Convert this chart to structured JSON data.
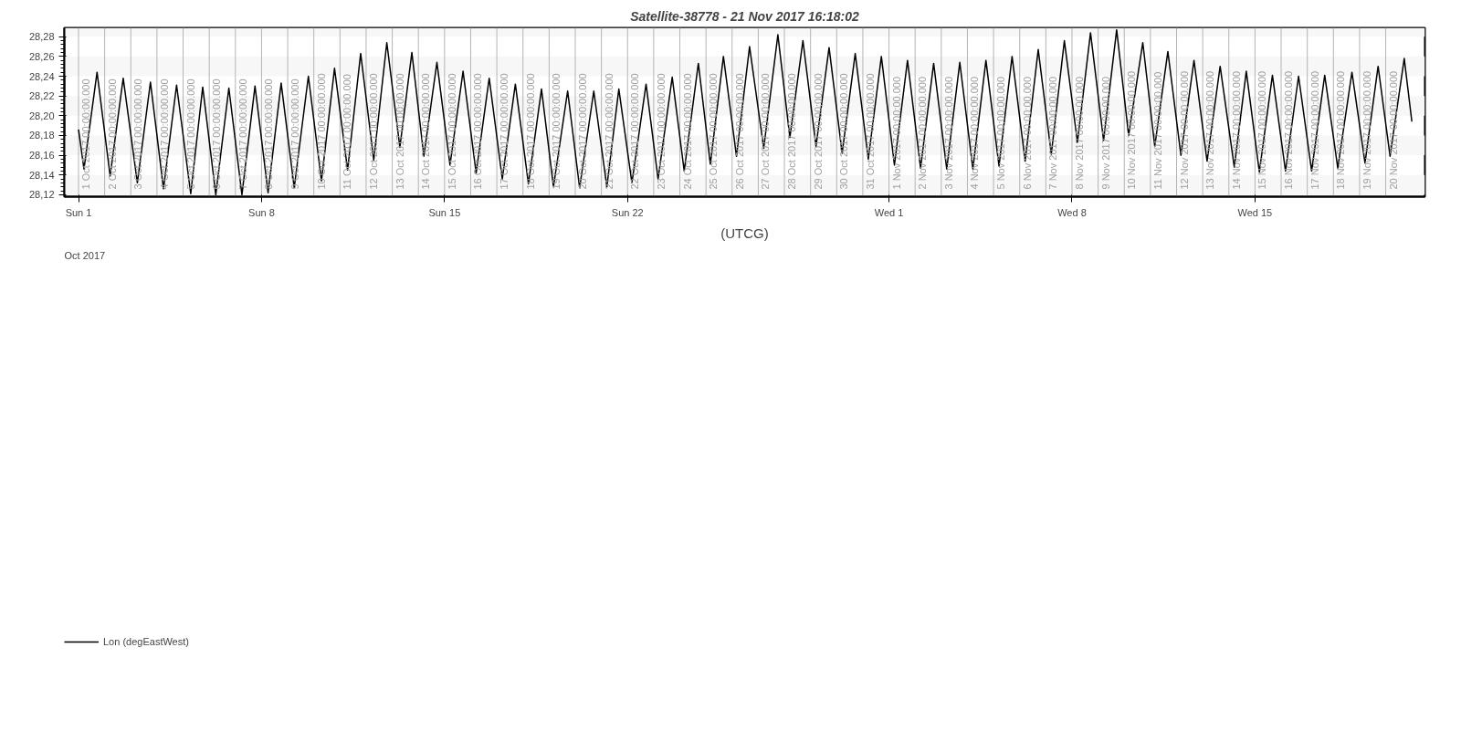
{
  "chart_data": {
    "type": "line",
    "title": "Satellite-38778 - 21 Nov 2017 16:18:02",
    "xlabel": "(UTCG)",
    "annotations": [
      "Oct 2017"
    ],
    "x": [
      "2017-10-01T00:00",
      "2017-10-01T05:00",
      "2017-10-01T17:00",
      "2017-10-02T05:00",
      "2017-10-02T17:00",
      "2017-10-03T06:00",
      "2017-10-03T18:00",
      "2017-10-04T06:00",
      "2017-10-04T18:00",
      "2017-10-05T07:00",
      "2017-10-05T18:00",
      "2017-10-06T06:00",
      "2017-10-06T18:00",
      "2017-10-07T06:00",
      "2017-10-07T18:00",
      "2017-10-08T06:00",
      "2017-10-08T18:00",
      "2017-10-09T06:00",
      "2017-10-09T19:00",
      "2017-10-10T07:00",
      "2017-10-10T19:00",
      "2017-10-11T07:00",
      "2017-10-11T19:00",
      "2017-10-12T07:00",
      "2017-10-12T19:00",
      "2017-10-13T07:00",
      "2017-10-13T18:00",
      "2017-10-14T05:00",
      "2017-10-14T17:00",
      "2017-10-15T05:00",
      "2017-10-15T17:00",
      "2017-10-16T05:00",
      "2017-10-16T17:00",
      "2017-10-17T05:00",
      "2017-10-17T17:00",
      "2017-10-18T05:00",
      "2017-10-18T17:00",
      "2017-10-19T04:00",
      "2017-10-19T17:00",
      "2017-10-20T04:00",
      "2017-10-20T17:00",
      "2017-10-21T05:00",
      "2017-10-21T16:00",
      "2017-10-22T04:00",
      "2017-10-22T17:00",
      "2017-10-23T04:00",
      "2017-10-23T17:00",
      "2017-10-24T04:00",
      "2017-10-24T17:00",
      "2017-10-25T04:00",
      "2017-10-25T16:00",
      "2017-10-26T04:00",
      "2017-10-26T16:00",
      "2017-10-27T05:00",
      "2017-10-27T18:00",
      "2017-10-28T05:00",
      "2017-10-28T17:00",
      "2017-10-29T05:00",
      "2017-10-29T17:00",
      "2017-10-30T05:00",
      "2017-10-30T17:00",
      "2017-10-31T05:00",
      "2017-10-31T17:00",
      "2017-11-01T05:00",
      "2017-11-01T17:00",
      "2017-11-02T05:00",
      "2017-11-02T17:00",
      "2017-11-03T05:00",
      "2017-11-03T17:00",
      "2017-11-04T05:00",
      "2017-11-04T17:00",
      "2017-11-05T05:00",
      "2017-11-05T17:00",
      "2017-11-06T05:00",
      "2017-11-06T17:00",
      "2017-11-07T05:00",
      "2017-11-07T17:00",
      "2017-11-08T05:00",
      "2017-11-08T17:00",
      "2017-11-09T05:00",
      "2017-11-09T17:00",
      "2017-11-10T04:00",
      "2017-11-10T17:00",
      "2017-11-11T04:00",
      "2017-11-11T16:00",
      "2017-11-12T04:00",
      "2017-11-12T16:00",
      "2017-11-13T04:00",
      "2017-11-13T16:00",
      "2017-11-14T05:00",
      "2017-11-14T16:00",
      "2017-11-15T04:00",
      "2017-11-15T16:00",
      "2017-11-16T04:00",
      "2017-11-16T16:00",
      "2017-11-17T04:00",
      "2017-11-17T16:00",
      "2017-11-18T04:00",
      "2017-11-18T17:00",
      "2017-11-19T05:00",
      "2017-11-19T17:00",
      "2017-11-20T04:00",
      "2017-11-20T17:00",
      "2017-11-21T00:00"
    ],
    "series": [
      {
        "name": "Lon (degEastWest)",
        "color": "#000000",
        "values": [
          28.186,
          28.146,
          28.244,
          28.139,
          28.238,
          28.132,
          28.234,
          28.126,
          28.231,
          28.121,
          28.229,
          28.12,
          28.228,
          28.12,
          28.23,
          28.122,
          28.233,
          28.127,
          28.24,
          28.134,
          28.248,
          28.145,
          28.263,
          28.155,
          28.274,
          28.168,
          28.264,
          28.159,
          28.254,
          28.15,
          28.245,
          28.142,
          28.238,
          28.136,
          28.232,
          28.131,
          28.227,
          28.128,
          28.225,
          28.127,
          28.225,
          28.128,
          28.227,
          28.132,
          28.232,
          28.136,
          28.239,
          28.144,
          28.253,
          28.151,
          28.26,
          28.159,
          28.27,
          28.167,
          28.282,
          28.178,
          28.276,
          28.169,
          28.269,
          28.162,
          28.263,
          28.156,
          28.26,
          28.15,
          28.256,
          28.147,
          28.253,
          28.146,
          28.254,
          28.146,
          28.256,
          28.149,
          28.26,
          28.154,
          28.267,
          28.161,
          28.276,
          28.173,
          28.284,
          28.175,
          28.287,
          28.18,
          28.274,
          28.169,
          28.265,
          28.16,
          28.256,
          28.154,
          28.25,
          28.148,
          28.245,
          28.143,
          28.241,
          28.144,
          28.24,
          28.144,
          28.241,
          28.147,
          28.244,
          28.152,
          28.25,
          28.159,
          28.258,
          28.194
        ]
      }
    ],
    "xlim": [
      "2017-09-30T11:00",
      "2017-11-21T12:00"
    ],
    "xticks": [
      {
        "value": "2017-10-01",
        "label": "Sun 1"
      },
      {
        "value": "2017-10-08",
        "label": "Sun 8"
      },
      {
        "value": "2017-10-15",
        "label": "Sun 15"
      },
      {
        "value": "2017-10-22",
        "label": "Sun 22"
      },
      {
        "value": "2017-11-01",
        "label": "Wed 1"
      },
      {
        "value": "2017-11-08",
        "label": "Wed 8"
      },
      {
        "value": "2017-11-15",
        "label": "Wed 15"
      }
    ],
    "ylim": [
      28.118,
      28.289
    ],
    "yticks": [
      {
        "value": 28.12,
        "label": "28,12"
      },
      {
        "value": 28.14,
        "label": "28,14"
      },
      {
        "value": 28.16,
        "label": "28,16"
      },
      {
        "value": 28.18,
        "label": "28,18"
      },
      {
        "value": 28.2,
        "label": "28,20"
      },
      {
        "value": 28.22,
        "label": "28,22"
      },
      {
        "value": 28.24,
        "label": "28,24"
      },
      {
        "value": 28.26,
        "label": "28,26"
      },
      {
        "value": 28.28,
        "label": "28,28"
      }
    ],
    "bands": [
      {
        "axis": "y",
        "from": 28.12,
        "to": 28.14,
        "color": "#f7f7f7"
      },
      {
        "axis": "y",
        "from": 28.16,
        "to": 28.18,
        "color": "#f7f7f7"
      },
      {
        "axis": "y",
        "from": 28.2,
        "to": 28.22,
        "color": "#f7f7f7"
      },
      {
        "axis": "y",
        "from": 28.24,
        "to": 28.26,
        "color": "#f7f7f7"
      },
      {
        "axis": "y",
        "from": 28.28,
        "to": 28.289,
        "color": "#f7f7f7"
      }
    ],
    "ref_lines": [
      {
        "axis": "x",
        "value": "2017-10-01",
        "label": "1 Oct 2017 00:00:00.000",
        "color": "#b4b4b4"
      },
      {
        "axis": "x",
        "value": "2017-10-02",
        "label": "2 Oct 2017 00:00:00.000",
        "color": "#b4b4b4"
      },
      {
        "axis": "x",
        "value": "2017-10-03",
        "label": "3 Oct 2017 00:00:00.000",
        "color": "#b4b4b4"
      },
      {
        "axis": "x",
        "value": "2017-10-04",
        "label": "4 Oct 2017 00:00:00.000",
        "color": "#b4b4b4"
      },
      {
        "axis": "x",
        "value": "2017-10-05",
        "label": "5 Oct 2017 00:00:00.000",
        "color": "#b4b4b4"
      },
      {
        "axis": "x",
        "value": "2017-10-06",
        "label": "6 Oct 2017 00:00:00.000",
        "color": "#b4b4b4"
      },
      {
        "axis": "x",
        "value": "2017-10-07",
        "label": "7 Oct 2017 00:00:00.000",
        "color": "#b4b4b4"
      },
      {
        "axis": "x",
        "value": "2017-10-08",
        "label": "8 Oct 2017 00:00:00.000",
        "color": "#b4b4b4"
      },
      {
        "axis": "x",
        "value": "2017-10-09",
        "label": "9 Oct 2017 00:00:00.000",
        "color": "#b4b4b4"
      },
      {
        "axis": "x",
        "value": "2017-10-10",
        "label": "10 Oct 2017 00:00:00.000",
        "color": "#b4b4b4"
      },
      {
        "axis": "x",
        "value": "2017-10-11",
        "label": "11 Oct 2017 00:00:00.000",
        "color": "#b4b4b4"
      },
      {
        "axis": "x",
        "value": "2017-10-12",
        "label": "12 Oct 2017 00:00:00.000",
        "color": "#b4b4b4"
      },
      {
        "axis": "x",
        "value": "2017-10-13",
        "label": "13 Oct 2017 00:00:00.000",
        "color": "#b4b4b4"
      },
      {
        "axis": "x",
        "value": "2017-10-14",
        "label": "14 Oct 2017 00:00:00.000",
        "color": "#b4b4b4"
      },
      {
        "axis": "x",
        "value": "2017-10-15",
        "label": "15 Oct 2017 00:00:00.000",
        "color": "#b4b4b4"
      },
      {
        "axis": "x",
        "value": "2017-10-16",
        "label": "16 Oct 2017 00:00:00.000",
        "color": "#b4b4b4"
      },
      {
        "axis": "x",
        "value": "2017-10-17",
        "label": "17 Oct 2017 00:00:00.000",
        "color": "#b4b4b4"
      },
      {
        "axis": "x",
        "value": "2017-10-18",
        "label": "18 Oct 2017 00:00:00.000",
        "color": "#b4b4b4"
      },
      {
        "axis": "x",
        "value": "2017-10-19",
        "label": "19 Oct 2017 00:00:00.000",
        "color": "#b4b4b4"
      },
      {
        "axis": "x",
        "value": "2017-10-20",
        "label": "20 Oct 2017 00:00:00.000",
        "color": "#b4b4b4"
      },
      {
        "axis": "x",
        "value": "2017-10-21",
        "label": "21 Oct 2017 00:00:00.000",
        "color": "#b4b4b4"
      },
      {
        "axis": "x",
        "value": "2017-10-22",
        "label": "22 Oct 2017 00:00:00.000",
        "color": "#b4b4b4"
      },
      {
        "axis": "x",
        "value": "2017-10-23",
        "label": "23 Oct 2017 00:00:00.000",
        "color": "#b4b4b4"
      },
      {
        "axis": "x",
        "value": "2017-10-24",
        "label": "24 Oct 2017 00:00:00.000",
        "color": "#b4b4b4"
      },
      {
        "axis": "x",
        "value": "2017-10-25",
        "label": "25 Oct 2017 00:00:00.000",
        "color": "#b4b4b4"
      },
      {
        "axis": "x",
        "value": "2017-10-26",
        "label": "26 Oct 2017 00:00:00.000",
        "color": "#b4b4b4"
      },
      {
        "axis": "x",
        "value": "2017-10-27",
        "label": "27 Oct 2017 00:00:00.000",
        "color": "#b4b4b4"
      },
      {
        "axis": "x",
        "value": "2017-10-28",
        "label": "28 Oct 2017 00:00:00.000",
        "color": "#b4b4b4"
      },
      {
        "axis": "x",
        "value": "2017-10-29",
        "label": "29 Oct 2017 00:00:00.000",
        "color": "#b4b4b4"
      },
      {
        "axis": "x",
        "value": "2017-10-30",
        "label": "30 Oct 2017 00:00:00.000",
        "color": "#b4b4b4"
      },
      {
        "axis": "x",
        "value": "2017-10-31",
        "label": "31 Oct 2017 00:00:00.000",
        "color": "#b4b4b4"
      },
      {
        "axis": "x",
        "value": "2017-11-01",
        "label": "1 Nov 2017 00:00:00.000",
        "color": "#b4b4b4"
      },
      {
        "axis": "x",
        "value": "2017-11-02",
        "label": "2 Nov 2017 00:00:00.000",
        "color": "#b4b4b4"
      },
      {
        "axis": "x",
        "value": "2017-11-03",
        "label": "3 Nov 2017 00:00:00.000",
        "color": "#b4b4b4"
      },
      {
        "axis": "x",
        "value": "2017-11-04",
        "label": "4 Nov 2017 00:00:00.000",
        "color": "#b4b4b4"
      },
      {
        "axis": "x",
        "value": "2017-11-05",
        "label": "5 Nov 2017 00:00:00.000",
        "color": "#b4b4b4"
      },
      {
        "axis": "x",
        "value": "2017-11-06",
        "label": "6 Nov 2017 00:00:00.000",
        "color": "#b4b4b4"
      },
      {
        "axis": "x",
        "value": "2017-11-07",
        "label": "7 Nov 2017 00:00:00.000",
        "color": "#b4b4b4"
      },
      {
        "axis": "x",
        "value": "2017-11-08",
        "label": "8 Nov 2017 00:00:00.000",
        "color": "#b4b4b4"
      },
      {
        "axis": "x",
        "value": "2017-11-09",
        "label": "9 Nov 2017 00:00:00.000",
        "color": "#b4b4b4"
      },
      {
        "axis": "x",
        "value": "2017-11-10",
        "label": "10 Nov 2017 00:00:00.000",
        "color": "#b4b4b4"
      },
      {
        "axis": "x",
        "value": "2017-11-11",
        "label": "11 Nov 2017 00:00:00.000",
        "color": "#b4b4b4"
      },
      {
        "axis": "x",
        "value": "2017-11-12",
        "label": "12 Nov 2017 00:00:00.000",
        "color": "#b4b4b4"
      },
      {
        "axis": "x",
        "value": "2017-11-13",
        "label": "13 Nov 2017 00:00:00.000",
        "color": "#b4b4b4"
      },
      {
        "axis": "x",
        "value": "2017-11-14",
        "label": "14 Nov 2017 00:00:00.000",
        "color": "#b4b4b4"
      },
      {
        "axis": "x",
        "value": "2017-11-15",
        "label": "15 Nov 2017 00:00:00.000",
        "color": "#b4b4b4"
      },
      {
        "axis": "x",
        "value": "2017-11-16",
        "label": "16 Nov 2017 00:00:00.000",
        "color": "#b4b4b4"
      },
      {
        "axis": "x",
        "value": "2017-11-17",
        "label": "17 Nov 2017 00:00:00.000",
        "color": "#b4b4b4"
      },
      {
        "axis": "x",
        "value": "2017-11-18",
        "label": "18 Nov 2017 00:00:00.000",
        "color": "#b4b4b4"
      },
      {
        "axis": "x",
        "value": "2017-11-19",
        "label": "19 Nov 2017 00:00:00.000",
        "color": "#b4b4b4"
      },
      {
        "axis": "x",
        "value": "2017-11-20",
        "label": "20 Nov 2017 00:00:00.000",
        "color": "#b4b4b4"
      }
    ],
    "legend": "bottom left",
    "marker": "none",
    "line_style": "solid"
  }
}
